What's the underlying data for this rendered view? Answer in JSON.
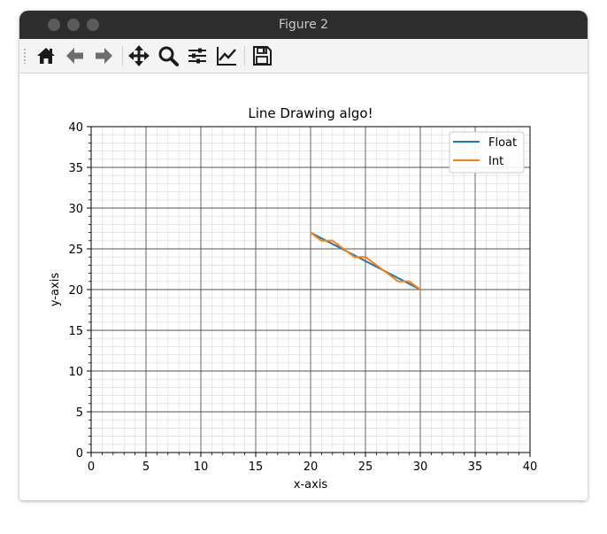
{
  "window": {
    "title": "Figure 2"
  },
  "toolbar": {
    "buttons": [
      {
        "name": "home-icon"
      },
      {
        "name": "back-arrow-icon"
      },
      {
        "name": "forward-arrow-icon"
      },
      {
        "name": "pan-icon"
      },
      {
        "name": "zoom-icon"
      },
      {
        "name": "configure-subplots-icon"
      },
      {
        "name": "edit-axis-icon"
      },
      {
        "name": "save-icon"
      }
    ]
  },
  "colors": {
    "float": "#1f77b4",
    "int": "#ff7f0e"
  },
  "chart_data": {
    "type": "line",
    "title": "Line Drawing algo!",
    "xlabel": "x-axis",
    "ylabel": "y-axis",
    "xlim": [
      0,
      40
    ],
    "ylim": [
      0,
      40
    ],
    "xticks": [
      "0",
      "5",
      "10",
      "15",
      "20",
      "25",
      "30",
      "35",
      "40"
    ],
    "yticks": [
      "0",
      "5",
      "10",
      "15",
      "20",
      "25",
      "30",
      "35",
      "40"
    ],
    "grid": "major and minor",
    "legend": "top-right",
    "series": [
      {
        "name": "Float",
        "color": "#1f77b4",
        "x": [
          20,
          30
        ],
        "y": [
          27,
          20
        ]
      },
      {
        "name": "Int",
        "color": "#ff7f0e",
        "x": [
          20,
          21,
          22,
          23,
          24,
          25,
          26,
          27,
          28,
          29,
          30
        ],
        "y": [
          27,
          26,
          26,
          25,
          24,
          24,
          23,
          22,
          21,
          21,
          20
        ]
      }
    ]
  }
}
